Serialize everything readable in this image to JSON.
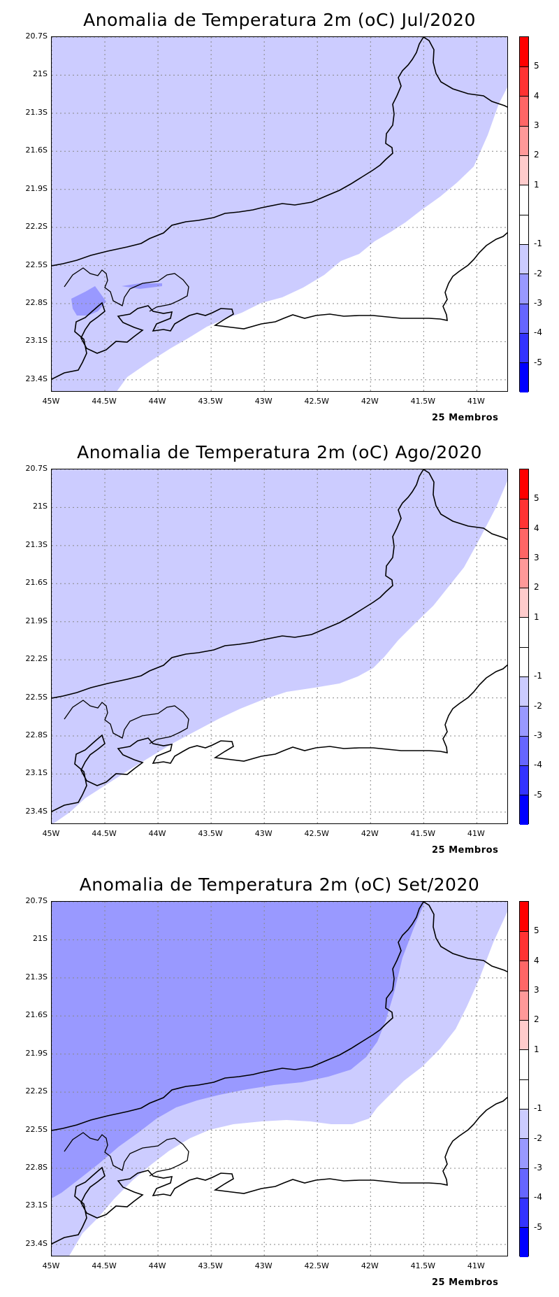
{
  "panels": [
    {
      "title": "Anomalia de Temperatura 2m (oC) Jul/2020",
      "footnote": "25 Membros",
      "lightest_shade": "#ccccff",
      "darker_patch": "yes"
    },
    {
      "title": "Anomalia de Temperatura 2m (oC) Ago/2020",
      "footnote": "25 Membros",
      "lightest_shade": "#ccccff"
    },
    {
      "title": "Anomalia de Temperatura 2m (oC) Set/2020",
      "footnote": "25 Membros",
      "lightest_shade": "#ccccff",
      "mid_shade": "#9999ff"
    }
  ],
  "axes": {
    "y_labels": [
      "20.7S",
      "21S",
      "21.3S",
      "21.6S",
      "21.9S",
      "22.2S",
      "22.5S",
      "22.8S",
      "23.1S",
      "23.4S"
    ],
    "x_labels": [
      "45W",
      "44.5W",
      "44W",
      "43.5W",
      "43W",
      "42.5W",
      "42W",
      "41.5W",
      "41W"
    ]
  },
  "colorbar": {
    "labels": [
      "5",
      "4",
      "3",
      "2",
      "1",
      "-1",
      "-2",
      "-3",
      "-4",
      "-5"
    ],
    "colors": [
      "#ff0000",
      "#ff3333",
      "#ff6666",
      "#ff9999",
      "#ffcccc",
      "#ffffff",
      "#ffffff",
      "#ccccff",
      "#9999ff",
      "#6666ff",
      "#3333ff",
      "#0000ff"
    ]
  }
}
